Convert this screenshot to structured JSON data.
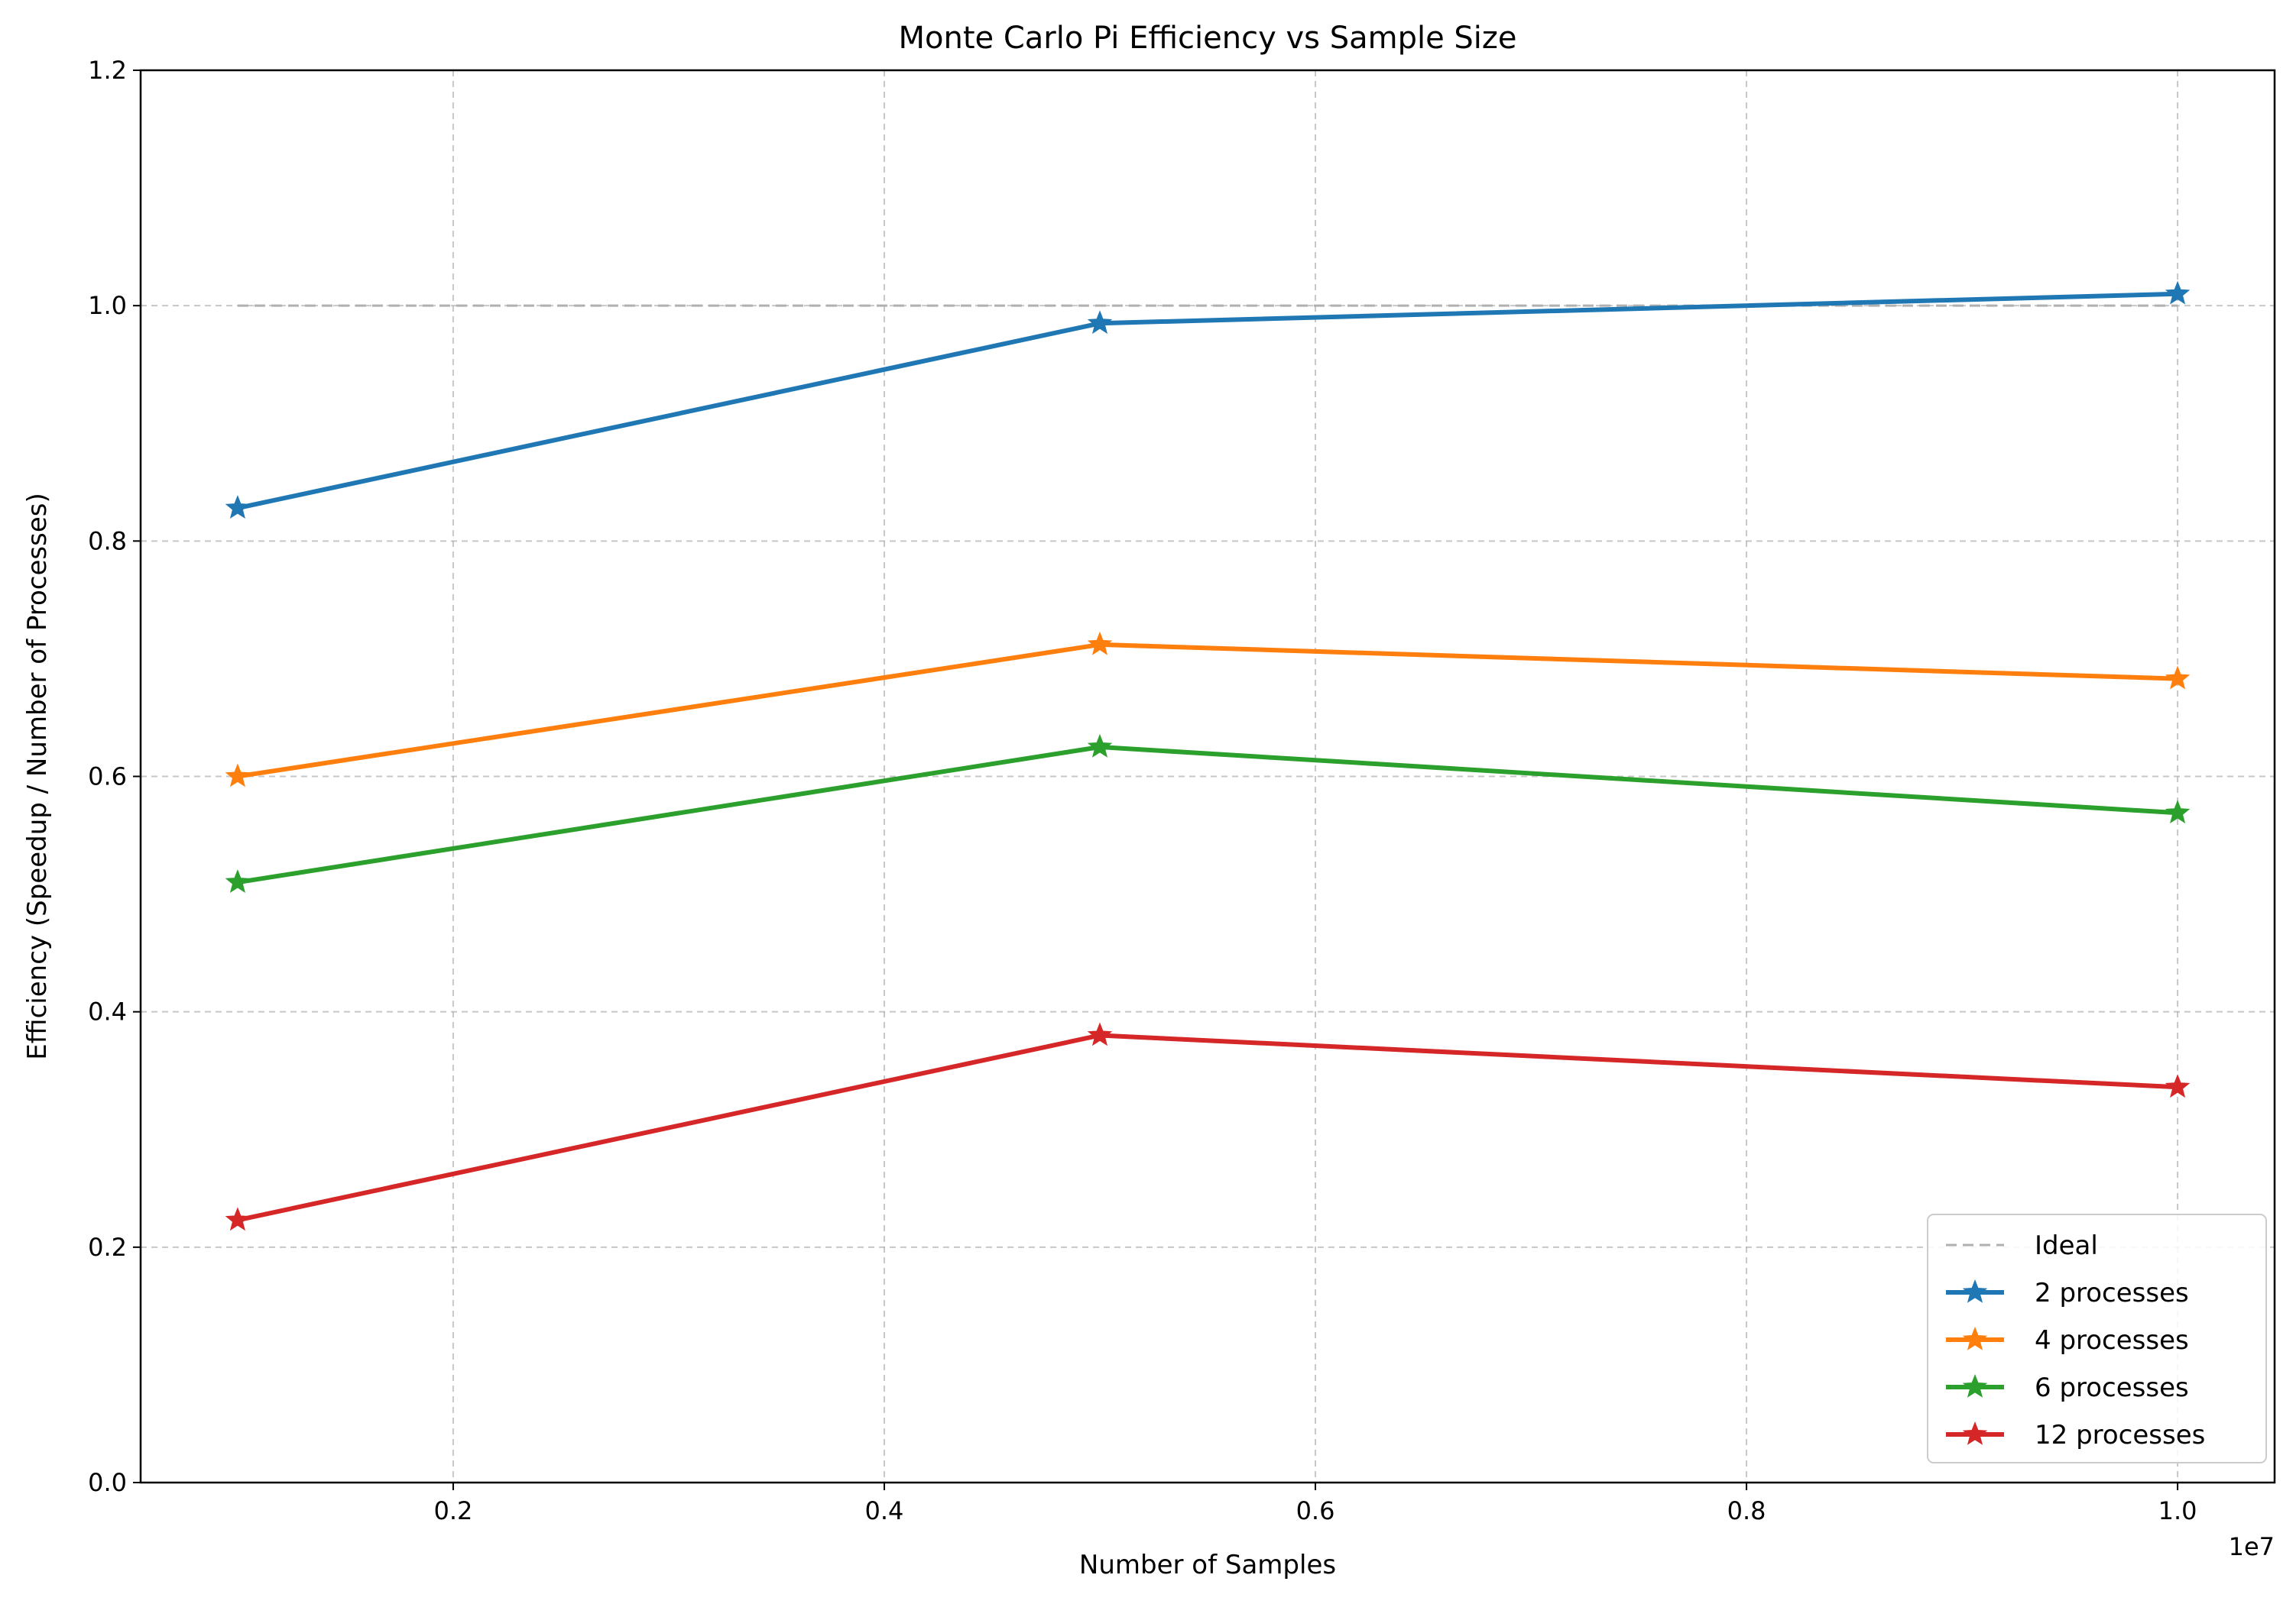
{
  "chart_data": {
    "type": "line",
    "title": "Monte Carlo Pi Efficiency vs Sample Size",
    "xlabel": "Number of Samples",
    "ylabel": "Efficiency (Speedup / Number of Processes)",
    "x_offset_label": "1e7",
    "x": [
      1000000,
      5000000,
      10000000
    ],
    "xlim": [
      550000,
      10450000
    ],
    "ylim": [
      0,
      1.2
    ],
    "xticks": [
      2000000,
      4000000,
      6000000,
      8000000,
      10000000
    ],
    "xtick_labels": [
      "0.2",
      "0.4",
      "0.6",
      "0.8",
      "1.0"
    ],
    "yticks": [
      0,
      0.2,
      0.4,
      0.6,
      0.8,
      1.0,
      1.2
    ],
    "ytick_labels": [
      "0.0",
      "0.2",
      "0.4",
      "0.6",
      "0.8",
      "1.0",
      "1.2"
    ],
    "grid": true,
    "legend_position": "lower-right",
    "ideal": {
      "name": "Ideal",
      "values": [
        1.0,
        1.0,
        1.0
      ],
      "color": "#b0b0b0",
      "style": "dashed"
    },
    "series": [
      {
        "name": "2 processes",
        "color": "#1f77b4",
        "values": [
          0.828,
          0.985,
          1.01
        ]
      },
      {
        "name": "4 processes",
        "color": "#ff7f0e",
        "values": [
          0.6,
          0.712,
          0.683
        ]
      },
      {
        "name": "6 processes",
        "color": "#2ca02c",
        "values": [
          0.51,
          0.625,
          0.569
        ]
      },
      {
        "name": "12 processes",
        "color": "#d62728",
        "values": [
          0.223,
          0.38,
          0.336
        ]
      }
    ]
  }
}
